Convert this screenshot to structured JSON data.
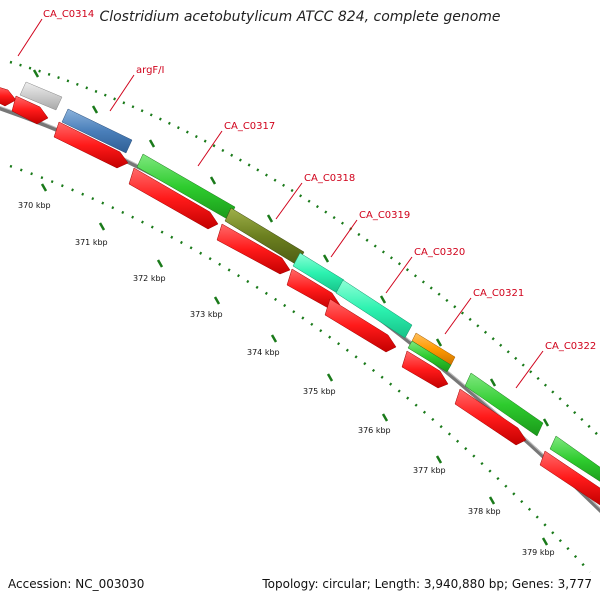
{
  "title": "Clostridium acetobutylicum ATCC 824, complete genome",
  "accession": "Accession: NC_003030",
  "summary": "Topology: circular; Length: 3,940,880 bp; Genes: 3,777",
  "colors": {
    "cds_red": "#ff1a1a",
    "backbone": "#777777",
    "ticks": "#1a7a1a",
    "label": "#d0021b"
  },
  "gene_labels": [
    "CA_C0314",
    "argF/I",
    "CA_C0317",
    "CA_C0318",
    "CA_C0319",
    "CA_C0320",
    "CA_C0321",
    "CA_C0322"
  ],
  "kbp_labels": [
    "370 kbp",
    "371 kbp",
    "372 kbp",
    "373 kbp",
    "374 kbp",
    "375 kbp",
    "376 kbp",
    "377 kbp",
    "378 kbp",
    "379 kbp"
  ]
}
